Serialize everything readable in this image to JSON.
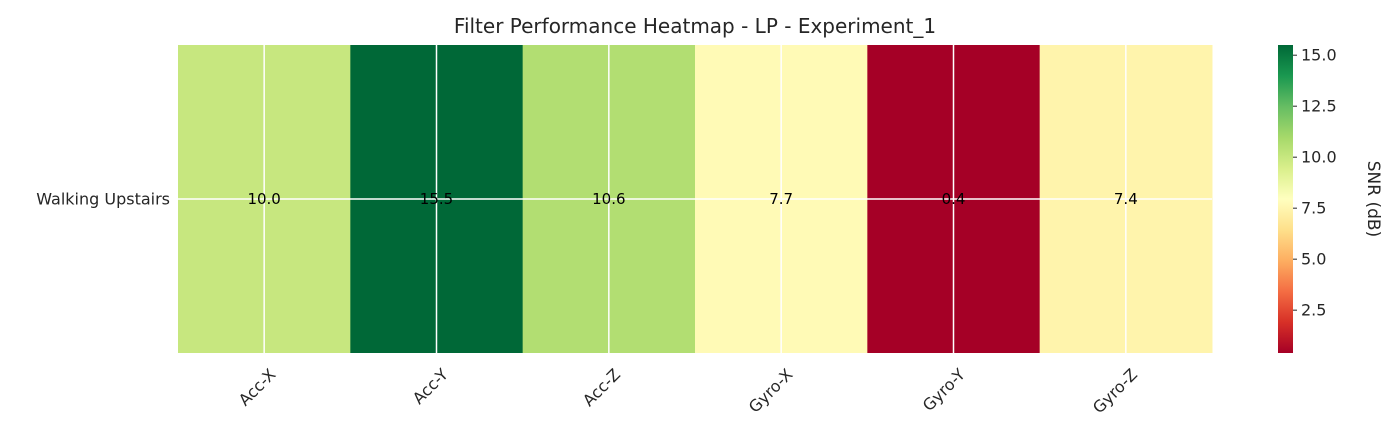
{
  "chart_data": {
    "type": "heatmap",
    "title": "Filter Performance Heatmap - LP - Experiment_1",
    "xlabel": "",
    "ylabel": "",
    "x_categories": [
      "Acc-X",
      "Acc-Y",
      "Acc-Z",
      "Gyro-X",
      "Gyro-Y",
      "Gyro-Z"
    ],
    "y_categories": [
      "Walking Upstairs"
    ],
    "values": [
      [
        10.0,
        15.5,
        10.6,
        7.7,
        0.4,
        7.4
      ]
    ],
    "value_labels": [
      [
        "10.0",
        "15.5",
        "10.6",
        "7.7",
        "0.4",
        "7.4"
      ]
    ],
    "colorscale": "RdYlGn",
    "colorbar": {
      "label": "SNR (dB)",
      "range": [
        0.4,
        15.5
      ],
      "ticks": [
        2.5,
        5.0,
        7.5,
        10.0,
        12.5,
        15.0
      ],
      "tick_labels": [
        "2.5",
        "5.0",
        "7.5",
        "10.0",
        "12.5",
        "15.0"
      ]
    },
    "grid": true,
    "grid_color": "#ffffff"
  }
}
